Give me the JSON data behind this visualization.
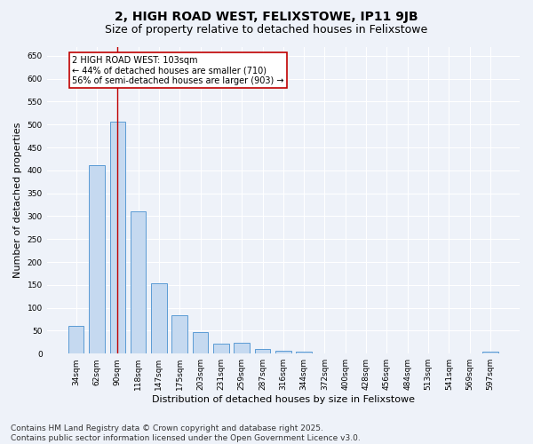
{
  "title": "2, HIGH ROAD WEST, FELIXSTOWE, IP11 9JB",
  "subtitle": "Size of property relative to detached houses in Felixstowe",
  "xlabel": "Distribution of detached houses by size in Felixstowe",
  "ylabel": "Number of detached properties",
  "categories": [
    "34sqm",
    "62sqm",
    "90sqm",
    "118sqm",
    "147sqm",
    "175sqm",
    "203sqm",
    "231sqm",
    "259sqm",
    "287sqm",
    "316sqm",
    "344sqm",
    "372sqm",
    "400sqm",
    "428sqm",
    "456sqm",
    "484sqm",
    "513sqm",
    "541sqm",
    "569sqm",
    "597sqm"
  ],
  "values": [
    60,
    412,
    507,
    311,
    154,
    84,
    46,
    22,
    24,
    10,
    7,
    5,
    1,
    0,
    0,
    0,
    0,
    0,
    0,
    0,
    5
  ],
  "bar_color": "#c5d9f0",
  "bar_edge_color": "#5b9bd5",
  "bar_width": 0.75,
  "vline_x": 2,
  "vline_color": "#c00000",
  "annotation_text": "2 HIGH ROAD WEST: 103sqm\n← 44% of detached houses are smaller (710)\n56% of semi-detached houses are larger (903) →",
  "annotation_box_facecolor": "#ffffff",
  "annotation_box_edgecolor": "#c00000",
  "ylim": [
    0,
    670
  ],
  "yticks": [
    0,
    50,
    100,
    150,
    200,
    250,
    300,
    350,
    400,
    450,
    500,
    550,
    600,
    650
  ],
  "footer_text": "Contains HM Land Registry data © Crown copyright and database right 2025.\nContains public sector information licensed under the Open Government Licence v3.0.",
  "background_color": "#eef2f9",
  "grid_color": "#ffffff",
  "title_fontsize": 10,
  "subtitle_fontsize": 9,
  "tick_fontsize": 6.5,
  "ylabel_fontsize": 8,
  "xlabel_fontsize": 8,
  "annotation_fontsize": 7,
  "footer_fontsize": 6.5
}
